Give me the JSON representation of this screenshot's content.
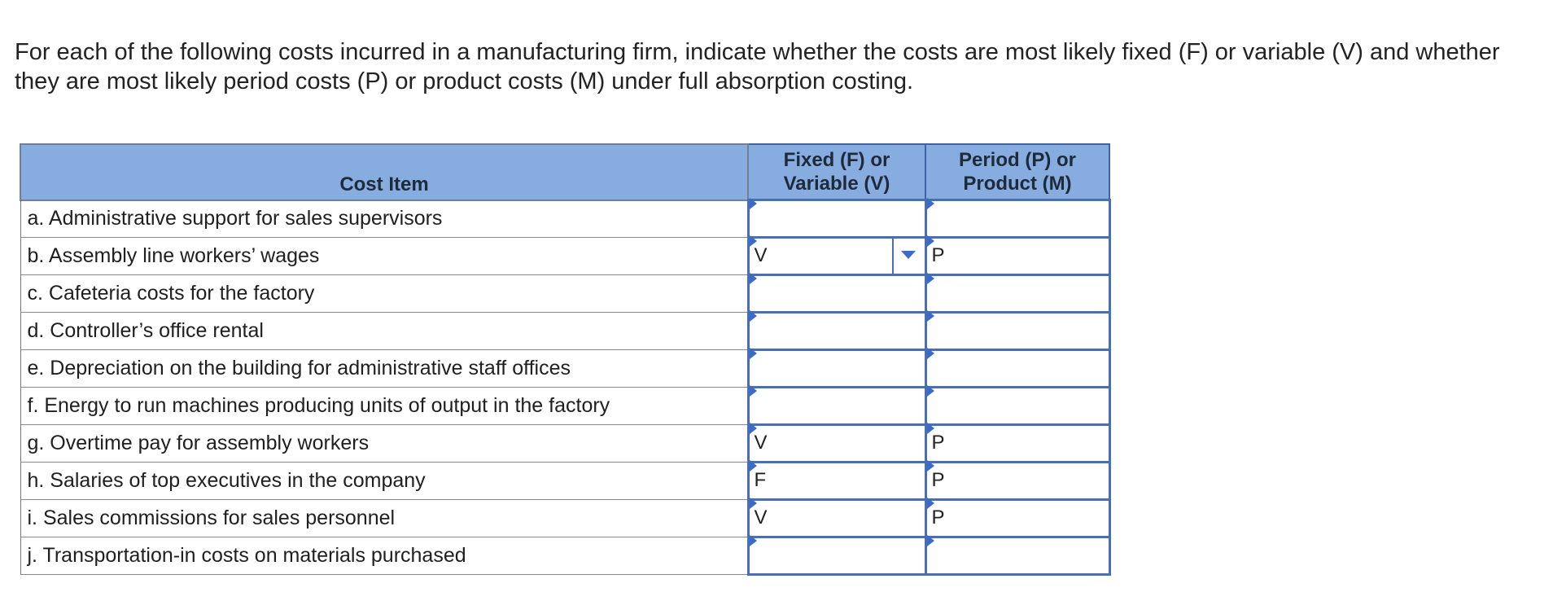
{
  "prompt": "For each of the following costs incurred in a manufacturing firm, indicate whether the costs are most likely fixed (F) or variable (V) and whether they are most likely period costs (P) or product costs (M) under full absorption costing.",
  "table": {
    "headers": {
      "item": "Cost Item",
      "fv_line1": "Fixed (F) or",
      "fv_line2": "Variable (V)",
      "pm_line1": "Period (P) or",
      "pm_line2": "Product (M)"
    },
    "rows": [
      {
        "item": "a. Administrative support for sales supervisors",
        "fv": "",
        "pm": ""
      },
      {
        "item": "b. Assembly line workers’ wages",
        "fv": "V",
        "pm": "P"
      },
      {
        "item": "c. Cafeteria costs for the factory",
        "fv": "",
        "pm": ""
      },
      {
        "item": "d. Controller’s office rental",
        "fv": "",
        "pm": ""
      },
      {
        "item": "e. Depreciation on the building for administrative staff offices",
        "fv": "",
        "pm": ""
      },
      {
        "item": "f. Energy to run machines producing units of output in the factory",
        "fv": "",
        "pm": ""
      },
      {
        "item": "g. Overtime pay for assembly workers",
        "fv": "V",
        "pm": "P"
      },
      {
        "item": "h. Salaries of top executives in the company",
        "fv": "F",
        "pm": "P"
      },
      {
        "item": "i. Sales commissions for sales personnel",
        "fv": "V",
        "pm": "P"
      },
      {
        "item": "j. Transportation-in costs on materials purchased",
        "fv": "",
        "pm": ""
      }
    ]
  },
  "icons": {
    "dropdown": "chevron-down-icon",
    "cell_flag": "input-flag-icon"
  },
  "colors": {
    "header_bg": "#87acdf",
    "input_border": "#4a6fb1",
    "flag": "#3a6bc5"
  }
}
